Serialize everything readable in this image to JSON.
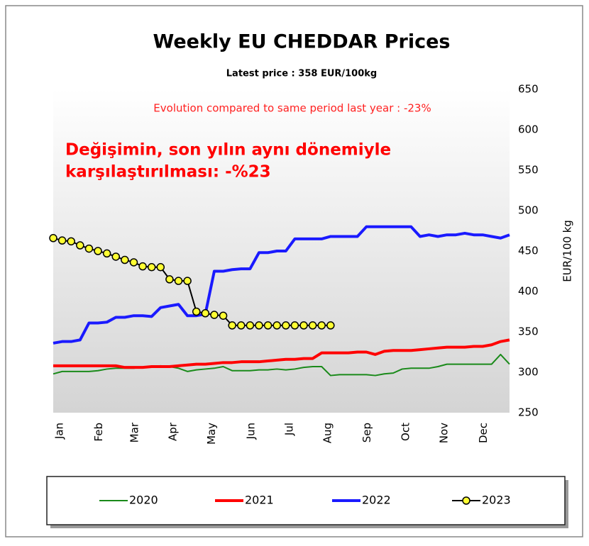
{
  "chart_data": {
    "type": "line",
    "title": "Weekly EU CHEDDAR Prices",
    "subtitle": "Latest price : 358 EUR/100kg",
    "annotations": [
      "Evolution compared to same period last year : -23%",
      "Değişimin,  son  yılın aynı dönemiyle",
      "karşılaştırılması: -%23"
    ],
    "y_label": "EUR/100 kg",
    "x": [
      1,
      2,
      3,
      4,
      5,
      6,
      7,
      8,
      9,
      10,
      11,
      12,
      13,
      14,
      15,
      16,
      17,
      18,
      19,
      20,
      21,
      22,
      23,
      24,
      25,
      26,
      27,
      28,
      29,
      30,
      31,
      32,
      33,
      34,
      35,
      36,
      37,
      38,
      39,
      40,
      41,
      42,
      43,
      44,
      45,
      46,
      47,
      48,
      49,
      50,
      51,
      52
    ],
    "xlim": [
      1,
      52
    ],
    "xticks": [
      {
        "value": 1,
        "label": "Jan"
      },
      {
        "value": 5.4,
        "label": "Feb"
      },
      {
        "value": 9.4,
        "label": "Mar"
      },
      {
        "value": 13.7,
        "label": "Apr"
      },
      {
        "value": 18,
        "label": "May"
      },
      {
        "value": 22.4,
        "label": "Jun"
      },
      {
        "value": 26.7,
        "label": "Jul"
      },
      {
        "value": 31,
        "label": "Aug"
      },
      {
        "value": 35.4,
        "label": "Sep"
      },
      {
        "value": 39.7,
        "label": "Oct"
      },
      {
        "value": 44,
        "label": "Nov"
      },
      {
        "value": 48.4,
        "label": "Dec"
      }
    ],
    "ylim": [
      250,
      650
    ],
    "yticks": [
      250,
      300,
      350,
      400,
      450,
      500,
      550,
      600,
      650
    ],
    "legend": "bottom",
    "series": [
      {
        "name": "2020",
        "color": "#1a8a1a",
        "width": 2,
        "values": [
          298,
          301,
          301,
          301,
          301,
          302,
          304,
          305,
          305,
          305,
          306,
          307,
          308,
          307,
          305,
          301,
          303,
          304,
          305,
          307,
          302,
          302,
          302,
          303,
          303,
          304,
          303,
          304,
          306,
          307,
          307,
          296,
          297,
          297,
          297,
          297,
          296,
          298,
          299,
          304,
          305,
          305,
          305,
          307,
          310,
          310,
          310,
          310,
          310,
          310,
          322,
          310
        ]
      },
      {
        "name": "2021",
        "color": "#ff0000",
        "width": 4,
        "values": [
          308,
          308,
          308,
          308,
          308,
          308,
          308,
          308,
          306,
          306,
          306,
          307,
          307,
          307,
          308,
          309,
          310,
          310,
          311,
          312,
          312,
          313,
          313,
          313,
          314,
          315,
          316,
          316,
          317,
          317,
          324,
          324,
          324,
          324,
          325,
          325,
          322,
          326,
          327,
          327,
          327,
          328,
          329,
          330,
          331,
          331,
          331,
          332,
          332,
          334,
          338,
          340
        ]
      },
      {
        "name": "2022",
        "color": "#1a1aff",
        "width": 4,
        "values": [
          336,
          338,
          338,
          340,
          361,
          361,
          362,
          368,
          368,
          370,
          370,
          369,
          380,
          382,
          384,
          370,
          370,
          372,
          425,
          425,
          427,
          428,
          428,
          448,
          448,
          450,
          450,
          465,
          465,
          465,
          465,
          468,
          468,
          468,
          468,
          480,
          480,
          480,
          480,
          480,
          480,
          468,
          470,
          468,
          470,
          470,
          472,
          470,
          470,
          468,
          466,
          470
        ]
      },
      {
        "name": "2023",
        "color": "#000000",
        "marker": "#ffff33",
        "width": 2,
        "values": [
          466,
          463,
          462,
          457,
          453,
          450,
          447,
          443,
          439,
          436,
          431,
          430,
          430,
          415,
          413,
          413,
          375,
          373,
          371,
          370,
          358,
          358,
          358,
          358,
          358,
          358,
          358,
          358,
          358,
          358,
          358,
          358,
          null,
          null,
          null,
          null,
          null,
          null,
          null,
          null,
          null,
          null,
          null,
          null,
          null,
          null,
          null,
          null,
          null,
          null,
          null,
          null
        ]
      }
    ]
  }
}
